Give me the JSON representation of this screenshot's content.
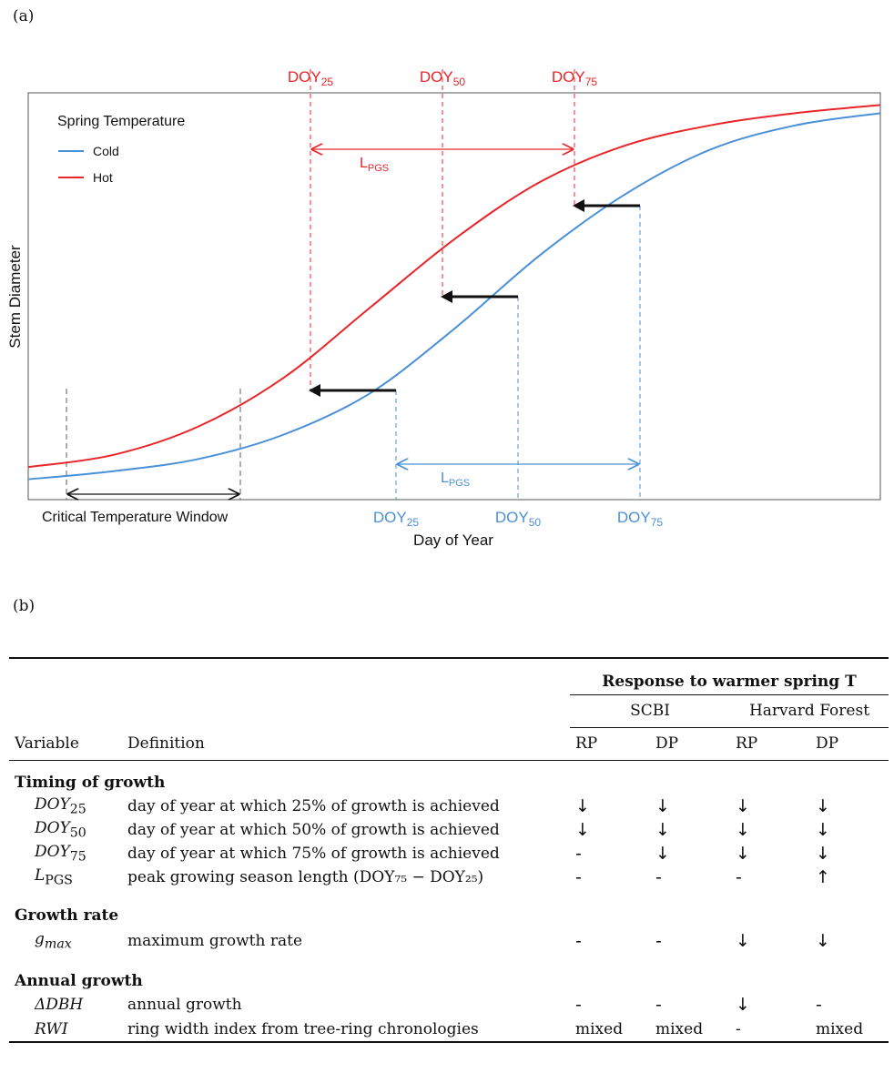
{
  "panel_a_label": "(a)",
  "panel_b_label": "(b)",
  "chart_data": {
    "type": "line",
    "title": "",
    "xlabel": "Day of Year",
    "ylabel": "Stem Diameter",
    "legend": {
      "title": "Spring Temperature",
      "placement": "top-left",
      "entries": [
        {
          "name": "Cold",
          "color": "#4a90d9"
        },
        {
          "name": "Hot",
          "color": "#e8262a"
        }
      ]
    },
    "series": [
      {
        "name": "Cold",
        "color": "#4a90d9",
        "x": [
          0,
          10,
          20,
          30,
          40,
          50,
          60,
          70,
          80,
          90,
          100
        ],
        "values": [
          0.05,
          0.07,
          0.1,
          0.16,
          0.26,
          0.42,
          0.6,
          0.75,
          0.86,
          0.92,
          0.95
        ]
      },
      {
        "name": "Hot",
        "color": "#e8262a",
        "x": [
          0,
          10,
          20,
          30,
          40,
          50,
          60,
          70,
          80,
          90,
          100
        ],
        "values": [
          0.08,
          0.11,
          0.18,
          0.3,
          0.47,
          0.64,
          0.78,
          0.87,
          0.92,
          0.95,
          0.97
        ]
      }
    ],
    "annotations": {
      "hot_doy_25": {
        "pre": "DOY",
        "sub": "25"
      },
      "hot_doy_50": {
        "pre": "DOY",
        "sub": "50"
      },
      "hot_doy_75": {
        "pre": "DOY",
        "sub": "75"
      },
      "cold_doy_25": {
        "pre": "DOY",
        "sub": "25"
      },
      "cold_doy_50": {
        "pre": "DOY",
        "sub": "50"
      },
      "cold_doy_75": {
        "pre": "DOY",
        "sub": "75"
      },
      "hot_lpgs": {
        "pre": "L",
        "sub": "PGS"
      },
      "cold_lpgs": {
        "pre": "L",
        "sub": "PGS"
      },
      "critical_window": "Critical Temperature Window"
    }
  },
  "table": {
    "response_header": "Response to warmer spring T",
    "sites": [
      "SCBI",
      "Harvard Forest"
    ],
    "col_variable": "Variable",
    "col_definition": "Definition",
    "sub_cols": [
      "RP",
      "DP",
      "RP",
      "DP"
    ],
    "sections": [
      {
        "title": "Timing of growth",
        "rows": [
          {
            "sym": "DOY",
            "sub": "25",
            "definition": "day of year at which 25% of growth is achieved",
            "r": [
              "↓",
              "↓",
              "↓",
              "↓"
            ]
          },
          {
            "sym": "DOY",
            "sub": "50",
            "definition": "day of year at which 50% of growth is achieved",
            "r": [
              "↓",
              "↓",
              "↓",
              "↓"
            ]
          },
          {
            "sym": "DOY",
            "sub": "75",
            "definition": "day of year at which 75% of growth is achieved",
            "r": [
              "-",
              "↓",
              "↓",
              "↓"
            ]
          },
          {
            "sym": "L",
            "sub": "PGS",
            "definition": "peak growing season length (DOY₇₅ − DOY₂₅)",
            "r": [
              "-",
              "-",
              "-",
              "↑"
            ]
          }
        ]
      },
      {
        "title": "Growth rate",
        "rows": [
          {
            "sym": "g",
            "sub": "max",
            "definition": "maximum growth rate",
            "r": [
              "-",
              "-",
              "↓",
              "↓"
            ]
          }
        ]
      },
      {
        "title": "Annual growth",
        "rows": [
          {
            "sym": "ΔDBH",
            "sub": "",
            "definition": "annual growth",
            "r": [
              "-",
              "-",
              "↓",
              "-"
            ]
          },
          {
            "sym": "RWI",
            "sub": "",
            "definition": "ring width index from tree-ring chronologies",
            "r": [
              "mixed",
              "mixed",
              "-",
              "mixed"
            ]
          }
        ]
      }
    ]
  }
}
